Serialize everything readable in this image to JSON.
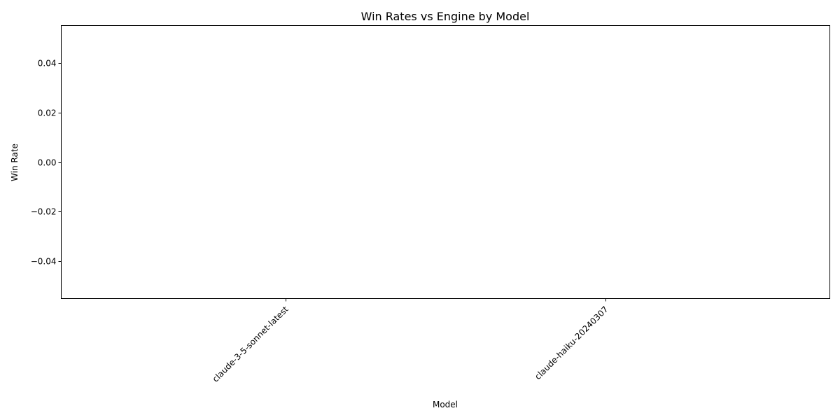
{
  "chart_data": {
    "type": "bar",
    "title": "Win Rates vs Engine by Model",
    "xlabel": "Model",
    "ylabel": "Win Rate",
    "categories": [
      "claude-3-5-sonnet-latest",
      "claude-haiku-20240307"
    ],
    "values": [
      0,
      0
    ],
    "ylim": [
      -0.055,
      0.055
    ],
    "yticks": [
      0.04,
      0.02,
      0.0,
      -0.02,
      -0.04
    ],
    "ytick_labels": [
      "0.04",
      "0.02",
      "0.00",
      "−0.02",
      "−0.04"
    ],
    "xtick_rotation": 45,
    "grid": false,
    "legend": false
  }
}
